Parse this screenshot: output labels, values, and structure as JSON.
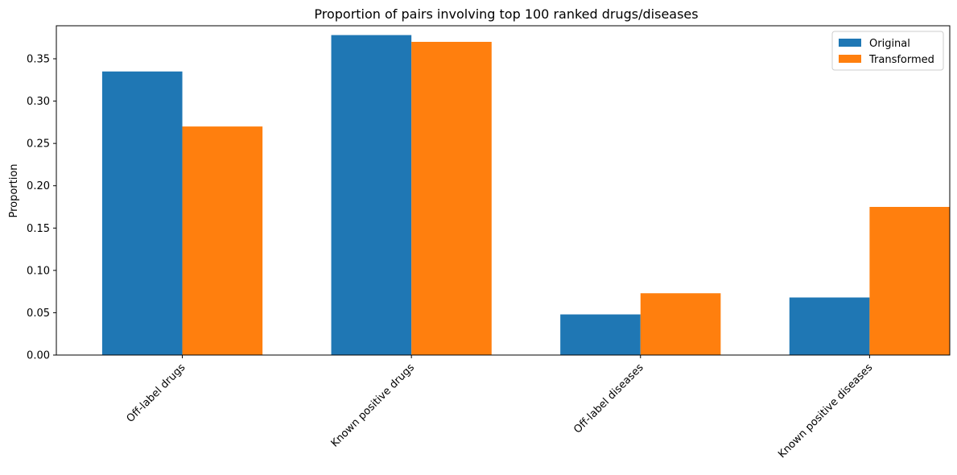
{
  "chart_data": {
    "type": "bar",
    "title": "Proportion of pairs involving top 100 ranked drugs/diseases",
    "xlabel": "",
    "ylabel": "Proportion",
    "categories": [
      "Off-label drugs",
      "Known positive drugs",
      "Off-label diseases",
      "Known positive diseases"
    ],
    "series": [
      {
        "name": "Original",
        "color": "#1f77b4",
        "values": [
          0.335,
          0.378,
          0.048,
          0.068
        ]
      },
      {
        "name": "Transformed",
        "color": "#ff7f0e",
        "values": [
          0.27,
          0.37,
          0.073,
          0.175
        ]
      }
    ],
    "ylim": [
      0,
      0.389
    ],
    "yticks": [
      "0.00",
      "0.05",
      "0.10",
      "0.15",
      "0.20",
      "0.25",
      "0.30",
      "0.35"
    ],
    "grid": false,
    "legend_position": "top-right"
  }
}
